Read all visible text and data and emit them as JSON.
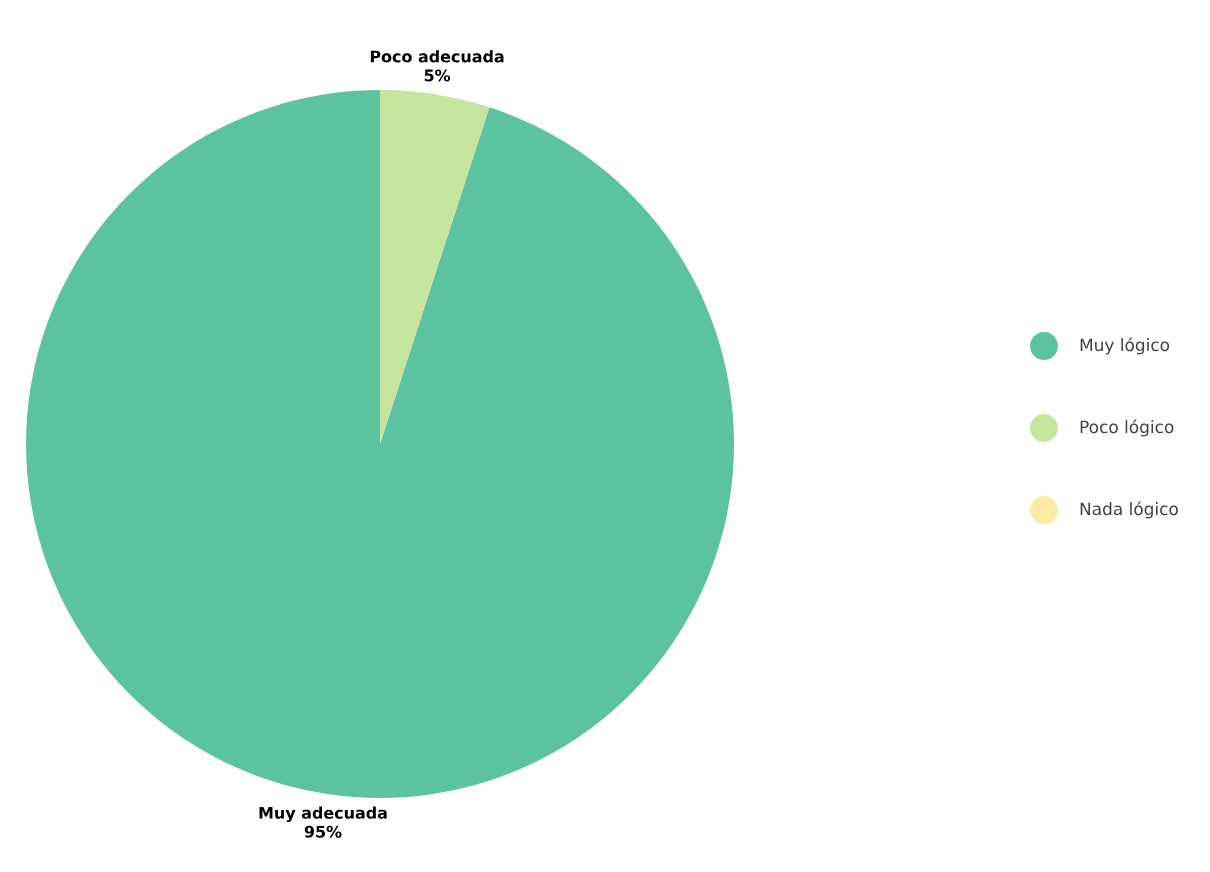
{
  "chart_data": {
    "type": "pie",
    "categories": [
      "Muy lógico",
      "Poco lógico",
      "Nada lógico"
    ],
    "values": [
      95,
      5,
      0
    ],
    "colors": [
      "#5cc3a0",
      "#c6e6a0",
      "#fdeba3"
    ],
    "value_labels": [
      "95%",
      "5%",
      null
    ],
    "annotations": [
      "Muy adecuada",
      "Poco adecuada"
    ],
    "legend": "right"
  }
}
